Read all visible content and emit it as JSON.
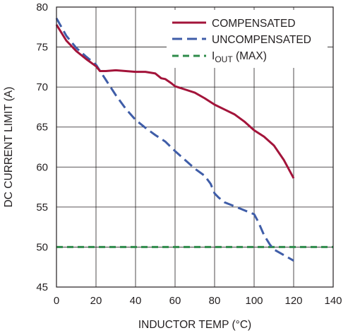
{
  "chart_data": {
    "type": "line",
    "title": "",
    "xlabel": "INDUCTOR TEMP (°C)",
    "ylabel": "DC CURRENT LIMIT (A)",
    "xlim": [
      0,
      140
    ],
    "ylim": [
      45,
      80
    ],
    "xticks": [
      0,
      20,
      40,
      60,
      80,
      100,
      120,
      140
    ],
    "yticks": [
      45,
      50,
      55,
      60,
      65,
      70,
      75,
      80
    ],
    "grid": true,
    "legend_position": "top-right",
    "series": [
      {
        "name": "COMPENSATED",
        "color": "#a3143a",
        "style": "solid",
        "x": [
          0,
          5,
          10,
          15,
          20,
          22,
          25,
          30,
          35,
          40,
          45,
          50,
          53,
          55,
          58,
          60,
          65,
          70,
          75,
          80,
          85,
          90,
          95,
          100,
          105,
          110,
          115,
          120
        ],
        "y": [
          77.8,
          75.8,
          74.5,
          73.5,
          72.6,
          72.0,
          72.0,
          72.1,
          72.0,
          71.9,
          71.9,
          71.7,
          71.1,
          71.0,
          70.5,
          70.1,
          69.7,
          69.3,
          68.6,
          67.8,
          67.2,
          66.6,
          65.7,
          64.6,
          63.8,
          62.7,
          60.9,
          58.6
        ]
      },
      {
        "name": "UNCOMPENSATED",
        "color": "#3f5da8",
        "style": "dashed",
        "x": [
          0,
          5,
          10,
          15,
          20,
          25,
          30,
          35,
          40,
          45,
          50,
          55,
          60,
          65,
          70,
          75,
          78,
          80,
          82,
          85,
          90,
          95,
          100,
          102,
          105,
          108,
          110,
          115,
          120
        ],
        "y": [
          78.6,
          76.4,
          74.9,
          73.8,
          72.8,
          70.9,
          69.0,
          67.3,
          65.9,
          64.9,
          64.0,
          63.2,
          62.0,
          60.9,
          59.8,
          58.9,
          57.9,
          56.7,
          56.2,
          55.6,
          55.1,
          54.6,
          54.1,
          53.2,
          51.5,
          50.3,
          49.7,
          49.0,
          48.3
        ]
      },
      {
        "name": "IOUT (MAX)",
        "legend_main": "I",
        "legend_sub": "OUT",
        "legend_tail": " (MAX)",
        "color": "#2e8b4a",
        "style": "dashed",
        "x": [
          0,
          140
        ],
        "y": [
          50,
          50
        ]
      }
    ]
  }
}
